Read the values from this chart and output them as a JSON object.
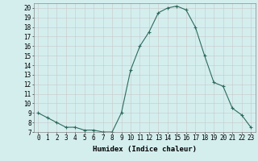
{
  "x": [
    0,
    1,
    2,
    3,
    4,
    5,
    6,
    7,
    8,
    9,
    10,
    11,
    12,
    13,
    14,
    15,
    16,
    17,
    18,
    19,
    20,
    21,
    22,
    23
  ],
  "y": [
    9.0,
    8.5,
    8.0,
    7.5,
    7.5,
    7.2,
    7.2,
    7.0,
    7.0,
    9.0,
    13.5,
    16.0,
    17.5,
    19.5,
    20.0,
    20.2,
    19.8,
    18.0,
    15.0,
    12.2,
    11.8,
    9.5,
    8.8,
    7.5
  ],
  "line_color": "#2d6b5e",
  "bg_color": "#d4eeee",
  "grid_color": "#c8c8c8",
  "xlabel": "Humidex (Indice chaleur)",
  "ylim": [
    7,
    20
  ],
  "xlim": [
    -0.5,
    23.5
  ],
  "yticks": [
    7,
    8,
    9,
    10,
    11,
    12,
    13,
    14,
    15,
    16,
    17,
    18,
    19,
    20
  ],
  "xticks": [
    0,
    1,
    2,
    3,
    4,
    5,
    6,
    7,
    8,
    9,
    10,
    11,
    12,
    13,
    14,
    15,
    16,
    17,
    18,
    19,
    20,
    21,
    22,
    23
  ],
  "label_fontsize": 6.5,
  "tick_fontsize": 5.5
}
